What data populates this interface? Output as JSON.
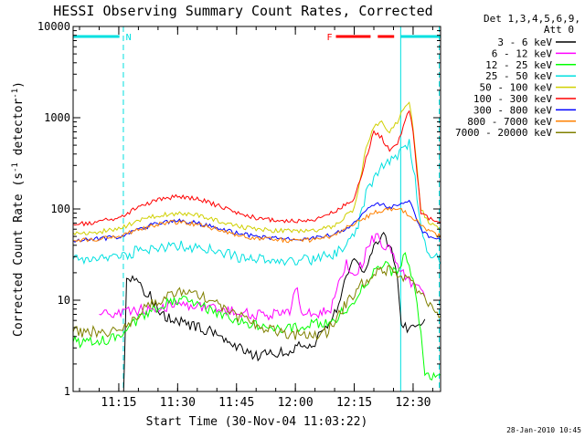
{
  "chart_data": {
    "type": "line",
    "title": "HESSI Observing Summary Count Rates, Corrected",
    "xlabel": "Start Time (30-Nov-04 11:03:22)",
    "ylabel": "Corrected Count Rate (s⁻¹ detector⁻¹)",
    "ylabel_base": "Corrected Count Rate (s",
    "ylabel_exp1": "-1",
    "ylabel_mid": " detector",
    "ylabel_exp2": "-1",
    "ylabel_end": ")",
    "timestamp": "28-Jan-2010 10:45",
    "y_scale": "log",
    "ylim": [
      1,
      10000
    ],
    "xlim": [
      "11:03:22",
      "12:37:00"
    ],
    "x_ticks": [
      "11:15",
      "11:30",
      "11:45",
      "12:00",
      "12:15",
      "12:30"
    ],
    "y_ticks": [
      "1",
      "10",
      "100",
      "1000",
      "10000"
    ],
    "legend_header": [
      "Det 1,3,4,5,6,9,",
      "Att 0"
    ],
    "flags": [
      {
        "label": "N",
        "color": "#00e0e0",
        "segments": [
          [
            "11:03:22",
            "11:15:10"
          ],
          [
            "12:26:50",
            "12:37:00"
          ]
        ]
      },
      {
        "label": "F",
        "color": "#ff0000",
        "segments": [
          [
            "12:10:20",
            "12:19:10"
          ],
          [
            "12:21:00",
            "12:25:10"
          ]
        ]
      }
    ],
    "markers": [
      {
        "time": "11:03:22",
        "color": "#00e0e0",
        "style": "solid"
      },
      {
        "time": "11:16:10",
        "color": "#00e0e0",
        "style": "dashed"
      },
      {
        "time": "12:26:50",
        "color": "#00e0e0",
        "style": "solid"
      },
      {
        "time": "12:36:40",
        "color": "#00e0e0",
        "style": "dashed"
      }
    ],
    "series": [
      {
        "name": "3 - 6 keV",
        "color": "#000000",
        "x": [
          "11:03:22",
          "11:16:00",
          "11:16:10",
          "11:17:00",
          "11:20:00",
          "11:23:00",
          "11:26:00",
          "11:30:00",
          "11:35:00",
          "11:40:00",
          "11:45:00",
          "11:50:00",
          "11:55:00",
          "12:00:00",
          "12:05:00",
          "12:10:00",
          "12:13:00",
          "12:15:00",
          "12:17:00",
          "12:19:00",
          "12:21:00",
          "12:22:00",
          "12:24:00",
          "12:26:00",
          "12:27:00",
          "12:29:00",
          "12:32:00",
          "12:33:00"
        ],
        "y": [
          null,
          null,
          0.8,
          18,
          15,
          11,
          7,
          6,
          5,
          4.5,
          3,
          2.5,
          2.5,
          3,
          3.5,
          7,
          18,
          30,
          18,
          30,
          45,
          55,
          40,
          20,
          5,
          5,
          6,
          6
        ]
      },
      {
        "name": "6 - 12 keV",
        "color": "#ff00ff",
        "x": [
          "11:03:22",
          "11:06:00",
          "11:10:00",
          "11:15:00",
          "11:18:00",
          "11:22:00",
          "11:30:00",
          "11:40:00",
          "11:50:00",
          "11:55:00",
          "11:59:00",
          "12:00:00",
          "12:01:00",
          "12:02:00",
          "12:05:00",
          "12:09:00",
          "12:11:00",
          "12:13:00",
          "12:15:00",
          "12:17:00",
          "12:19:00",
          "12:21:00",
          "12:22:00",
          "12:24:00",
          "12:26:00",
          "12:28:00",
          "12:30:00",
          "12:33:00"
        ],
        "y": [
          null,
          null,
          7,
          7,
          7.5,
          8,
          9,
          8,
          7,
          7,
          8,
          15,
          10,
          7,
          7,
          8,
          16,
          25,
          20,
          25,
          45,
          50,
          40,
          35,
          25,
          18,
          15,
          12
        ]
      },
      {
        "name": "12 - 25 keV",
        "color": "#00ff00",
        "x": [
          "11:03:22",
          "11:06:00",
          "11:10:00",
          "11:15:00",
          "11:18:00",
          "11:22:00",
          "11:26:00",
          "11:30:00",
          "11:35:00",
          "11:40:00",
          "11:45:00",
          "11:50:00",
          "11:55:00",
          "12:00:00",
          "12:05:00",
          "12:10:00",
          "12:14:00",
          "12:17:00",
          "12:19:00",
          "12:21:00",
          "12:23:00",
          "12:25:00",
          "12:27:00",
          "12:28:00",
          "12:30:00",
          "12:32:00",
          "12:33:00",
          "12:37:00"
        ],
        "y": [
          3.5,
          3.5,
          3.5,
          4,
          5.5,
          7,
          9,
          10,
          9,
          7,
          6,
          5.5,
          5,
          5,
          5.5,
          6,
          9,
          14,
          17,
          22,
          24,
          20,
          25,
          30,
          15,
          5,
          1.5,
          1.5
        ]
      },
      {
        "name": "25 - 50 keV",
        "color": "#00e0e0",
        "x": [
          "11:03:22",
          "11:08:00",
          "11:15:00",
          "11:20:00",
          "11:25:00",
          "11:30:00",
          "11:35:00",
          "11:40:00",
          "11:45:00",
          "11:50:00",
          "11:55:00",
          "12:00:00",
          "12:05:00",
          "12:10:00",
          "12:13:00",
          "12:16:00",
          "12:18:00",
          "12:20:00",
          "12:22:00",
          "12:23:00",
          "12:25:00",
          "12:27:00",
          "12:29:00",
          "12:30:00",
          "12:32:00",
          "12:34:00",
          "12:37:00"
        ],
        "y": [
          28,
          28,
          30,
          35,
          38,
          40,
          38,
          34,
          30,
          28,
          27,
          27,
          28,
          32,
          40,
          65,
          150,
          220,
          280,
          300,
          350,
          450,
          520,
          300,
          70,
          30,
          28
        ]
      },
      {
        "name": "50 - 100 keV",
        "color": "#d0d000",
        "x": [
          "11:03:22",
          "11:08:00",
          "11:15:00",
          "11:20:00",
          "11:25:00",
          "11:30:00",
          "11:35:00",
          "11:40:00",
          "11:45:00",
          "11:50:00",
          "11:55:00",
          "12:00:00",
          "12:05:00",
          "12:10:00",
          "12:15:00",
          "12:18:00",
          "12:20:00",
          "12:22:00",
          "12:24:00",
          "12:26:00",
          "12:28:00",
          "12:29:00",
          "12:30:00",
          "12:32:00",
          "12:34:00",
          "12:37:00"
        ],
        "y": [
          55,
          55,
          60,
          75,
          85,
          90,
          85,
          75,
          65,
          60,
          58,
          57,
          58,
          65,
          100,
          450,
          800,
          900,
          700,
          900,
          1400,
          1500,
          800,
          100,
          70,
          60
        ]
      },
      {
        "name": "100 - 300 keV",
        "color": "#ff0000",
        "x": [
          "11:03:22",
          "11:08:00",
          "11:15:00",
          "11:20:00",
          "11:25:00",
          "11:30:00",
          "11:35:00",
          "11:40:00",
          "11:45:00",
          "11:50:00",
          "11:55:00",
          "12:00:00",
          "12:05:00",
          "12:10:00",
          "12:15:00",
          "12:18:00",
          "12:20:00",
          "12:22:00",
          "12:24:00",
          "12:26:00",
          "12:28:00",
          "12:29:00",
          "12:30:00",
          "12:32:00",
          "12:34:00",
          "12:37:00"
        ],
        "y": [
          68,
          70,
          80,
          105,
          125,
          138,
          130,
          110,
          90,
          80,
          75,
          73,
          78,
          95,
          130,
          350,
          700,
          600,
          450,
          500,
          900,
          1250,
          700,
          90,
          80,
          72
        ]
      },
      {
        "name": "300 - 800 keV",
        "color": "#0000ff",
        "x": [
          "11:03:22",
          "11:08:00",
          "11:15:00",
          "11:20:00",
          "11:25:00",
          "11:30:00",
          "11:35:00",
          "11:40:00",
          "11:45:00",
          "11:50:00",
          "11:55:00",
          "12:00:00",
          "12:05:00",
          "12:10:00",
          "12:15:00",
          "12:18:00",
          "12:21:00",
          "12:24:00",
          "12:27:00",
          "12:29:00",
          "12:30:00",
          "12:32:00",
          "12:34:00",
          "12:37:00"
        ],
        "y": [
          45,
          46,
          50,
          60,
          70,
          75,
          70,
          62,
          55,
          50,
          48,
          47,
          48,
          52,
          70,
          100,
          115,
          105,
          110,
          125,
          100,
          60,
          50,
          45
        ]
      },
      {
        "name": "800 - 7000 keV",
        "color": "#ff8000",
        "x": [
          "11:03:22",
          "11:08:00",
          "11:15:00",
          "11:20:00",
          "11:25:00",
          "11:30:00",
          "11:35:00",
          "11:40:00",
          "11:45:00",
          "11:50:00",
          "11:55:00",
          "12:00:00",
          "12:05:00",
          "12:10:00",
          "12:15:00",
          "12:20:00",
          "12:24:00",
          "12:27:00",
          "12:30:00",
          "12:33:00",
          "12:37:00"
        ],
        "y": [
          45,
          46,
          50,
          60,
          68,
          72,
          68,
          60,
          52,
          48,
          46,
          45,
          46,
          52,
          70,
          90,
          100,
          98,
          80,
          60,
          50
        ]
      },
      {
        "name": "7000 - 20000 keV",
        "color": "#808000",
        "x": [
          "11:03:22",
          "11:08:00",
          "11:14:00",
          "11:17:00",
          "11:20:00",
          "11:23:00",
          "11:27:00",
          "11:30:00",
          "11:33:00",
          "11:37:00",
          "11:40:00",
          "11:44:00",
          "11:48:00",
          "11:52:00",
          "11:55:00",
          "12:00:00",
          "12:05:00",
          "12:08:00",
          "12:12:00",
          "12:16:00",
          "12:20:00",
          "12:24:00",
          "12:27:00",
          "12:30:00",
          "12:33:00",
          "12:37:00"
        ],
        "y": [
          4.5,
          4.5,
          4.5,
          5,
          7,
          9,
          11,
          12,
          12,
          11,
          9,
          7,
          6,
          5,
          4.5,
          4.2,
          4.2,
          4.5,
          8,
          14,
          20,
          22,
          18,
          15,
          10,
          6
        ]
      }
    ]
  }
}
